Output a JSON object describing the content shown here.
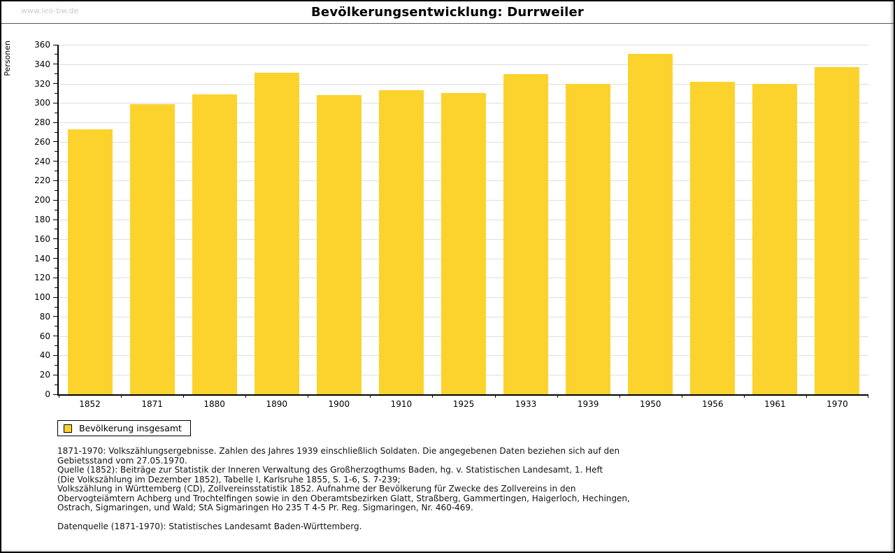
{
  "site": {
    "watermark": "www.leo-bw.de"
  },
  "chart_data": {
    "type": "bar",
    "title": "Bevölkerungsentwicklung: Durrweiler",
    "ylabel": "Personen",
    "xlabel": "",
    "ylim": [
      0,
      360
    ],
    "ytick_step": 20,
    "minor_tick_step": 10,
    "grid": true,
    "legend_position": "bottom-left",
    "categories": [
      "1852",
      "1871",
      "1880",
      "1890",
      "1900",
      "1910",
      "1925",
      "1933",
      "1939",
      "1950",
      "1956",
      "1961",
      "1970"
    ],
    "series": [
      {
        "name": "Bevölkerung insgesamt",
        "values": [
          273,
          299,
          309,
          331,
          308,
          313,
          310,
          330,
          320,
          351,
          322,
          320,
          337
        ]
      }
    ],
    "bar_color": "#FCD32D"
  },
  "legend": {
    "label": "Bevölkerung insgesamt",
    "swatch_color": "#FCD32D"
  },
  "colors": {
    "bar": "#FCD32D",
    "gridline": "#DEDEDE",
    "axis": "#000000",
    "watermark": "#CCCCCC",
    "background": "#FFFFFF"
  },
  "footer": {
    "lines": [
      "1871-1970: Volkszählungsergebnisse. Zahlen des Jahres 1939 einschließlich Soldaten. Die angegebenen Daten beziehen sich auf den",
      "Gebietsstand vom 27.05.1970.",
      "Quelle (1852): Beiträge zur Statistik der Inneren Verwaltung des Großherzogthums Baden, hg. v. Statistischen Landesamt, 1. Heft",
      "(Die Volkszählung im Dezember 1852), Tabelle I, Karlsruhe 1855, S. 1-6, S. 7-239;",
      "Volkszählung in Württemberg (CD), Zollvereinsstatistik 1852. Aufnahme der Bevölkerung für Zwecke des Zollvereins in den",
      "Obervogteiämtern Achberg und Trochtelfingen sowie in den Oberamtsbezirken Glatt, Straßberg, Gammertingen, Haigerloch, Hechingen,",
      "Ostrach, Sigmaringen, und Wald; StA Sigmaringen Ho 235 T 4-5 Pr. Reg. Sigmaringen, Nr. 460-469."
    ],
    "datasource": "Datenquelle (1871-1970): Statistisches Landesamt Baden-Württemberg."
  }
}
